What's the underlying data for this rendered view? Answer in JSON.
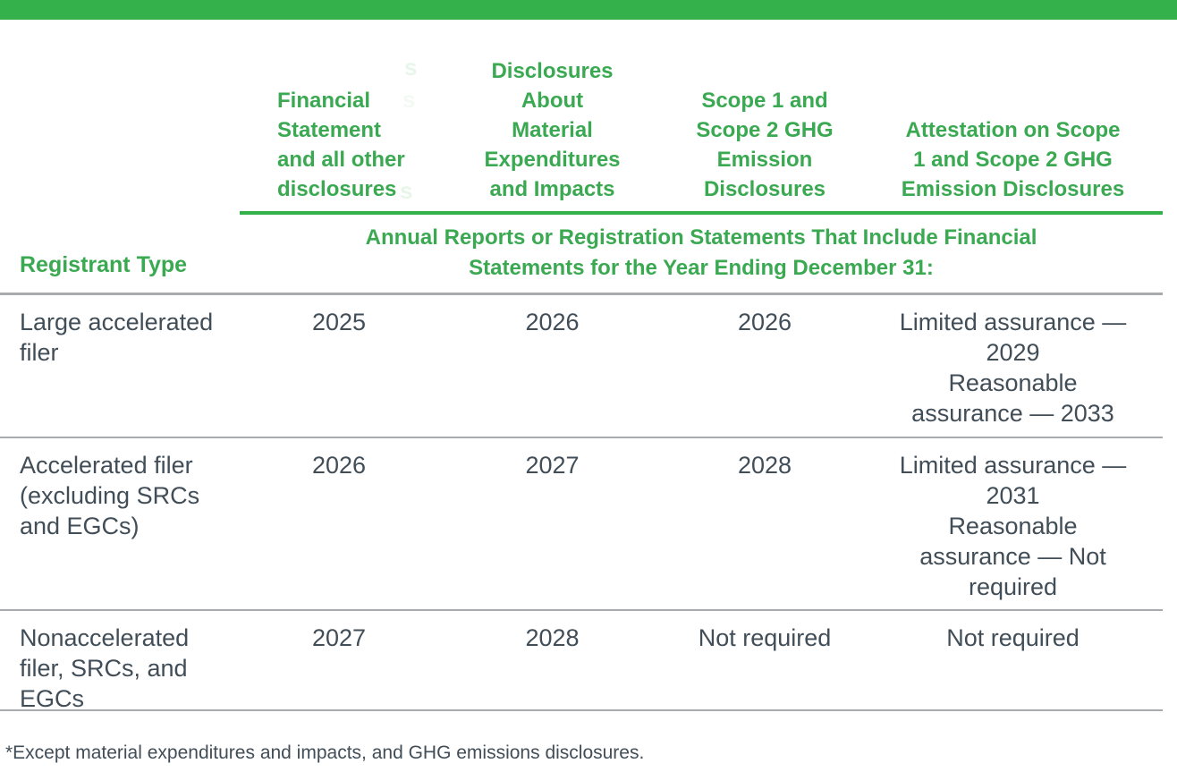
{
  "colors": {
    "accent_green": "#35b14b",
    "heading_green": "#3aa952",
    "divider_gray": "#a8abad",
    "body_text": "#414d57"
  },
  "table": {
    "registrant_type_header": "Registrant Type",
    "column_headers": [
      {
        "lines": [
          "Financial",
          "Statement",
          "and all other",
          "disclosures"
        ]
      },
      {
        "lines": [
          "Disclosures",
          "About",
          "Material",
          "Expenditures",
          "and Impacts"
        ]
      },
      {
        "lines": [
          "Scope 1 and",
          "Scope 2 GHG",
          "Emission",
          "Disclosures"
        ]
      },
      {
        "lines": [
          "Attestation on Scope",
          "1 and Scope 2 GHG",
          "Emission Disclosures"
        ]
      }
    ],
    "span_header_lines": [
      "Annual Reports or Registration Statements That Include Financial",
      "Statements for the Year Ending December 31:"
    ],
    "rows": [
      {
        "registrant_type_lines": [
          "Large accelerated",
          "filer"
        ],
        "financial": "2025",
        "expenditures": "2026",
        "scope": "2026",
        "attestation_lines": [
          "Limited assurance —",
          "2029",
          "Reasonable",
          "assurance — 2033"
        ]
      },
      {
        "registrant_type_lines": [
          "Accelerated filer",
          "(excluding SRCs",
          "and EGCs)"
        ],
        "financial": "2026",
        "expenditures": "2027",
        "scope": "2028",
        "attestation_lines": [
          "Limited assurance —",
          "2031",
          "Reasonable",
          "assurance — Not",
          "required"
        ]
      },
      {
        "registrant_type_lines": [
          "Nonaccelerated",
          "filer, SRCs, and",
          "EGCs"
        ],
        "financial": "2027",
        "expenditures": "2028",
        "scope": "Not required",
        "attestation_lines": [
          "Not required"
        ]
      }
    ]
  },
  "footnote": "*Except material expenditures and impacts, and GHG emissions disclosures.",
  "ghost_glyph": "s"
}
